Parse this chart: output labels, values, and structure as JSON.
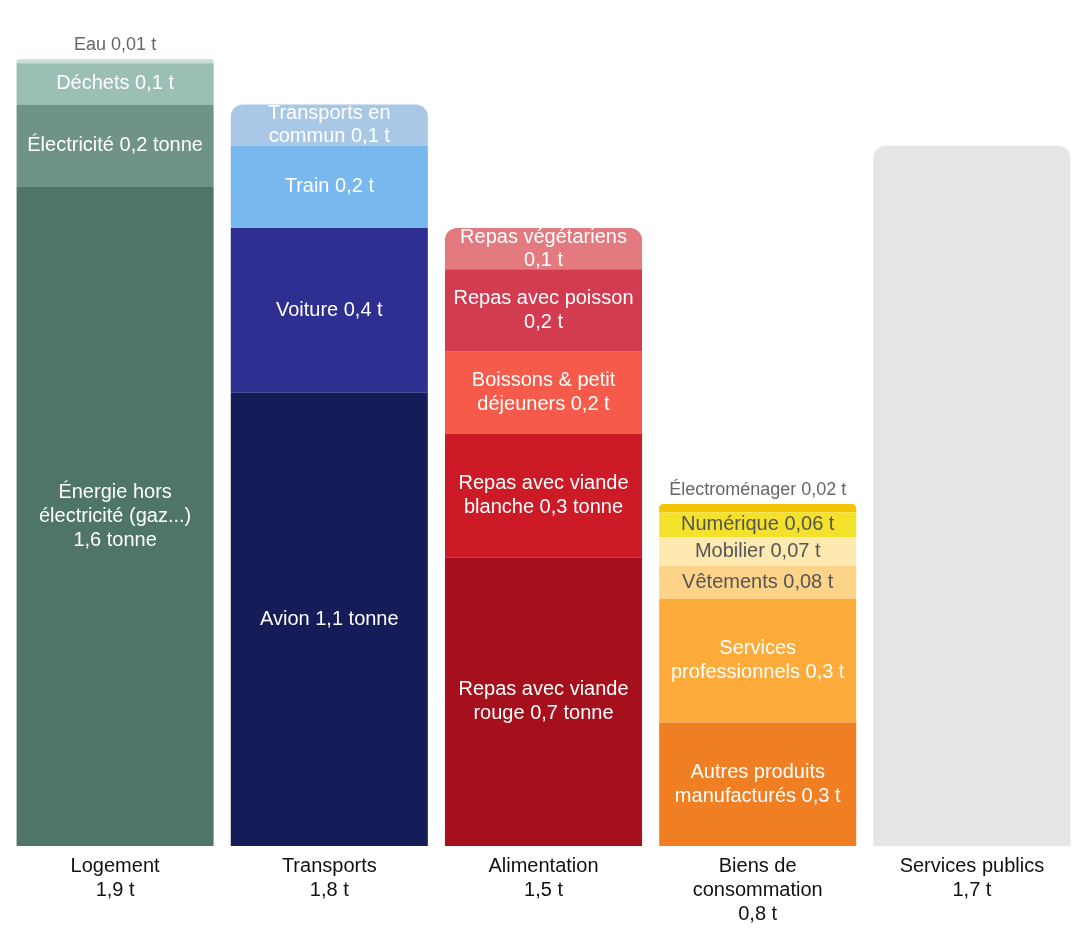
{
  "chart_data": {
    "type": "bar",
    "stacked": true,
    "grid": false,
    "legend": false,
    "categories": [
      "Logement",
      "Transports",
      "Alimentation",
      "Biens de consommation",
      "Services publics"
    ],
    "totals": [
      "1,9 t",
      "1,8 t",
      "1,5 t",
      "0,8 t",
      "1,7 t"
    ],
    "series": [
      {
        "values": [
          1.6,
          1.1,
          0.7,
          0.3,
          1.7
        ],
        "colors": [
          "#4e7566",
          "#151c57",
          "#a60f1c",
          "#f07e22",
          "#e5e5e5"
        ],
        "value_labels": [
          "Énergie hors électricité (gaz...) 1,6 tonne",
          "Avion 1,1 tonne",
          "Repas avec viande rouge 0,7 tonne",
          "Autres produits manufacturés 0,3 t",
          null
        ]
      },
      {
        "values": [
          0.2,
          0.4,
          0.3,
          0.3,
          null
        ],
        "colors": [
          "#6f9486",
          "#2e2f91",
          "#cd1a27",
          "#fdab3b",
          "#e5e5e5"
        ],
        "value_labels": [
          "Électricité 0,2 tonne",
          "Voiture 0,4 t",
          "Repas avec viande blanche 0,3 tonne",
          "Services professionnels 0,3 t",
          null
        ]
      },
      {
        "values": [
          0.1,
          0.2,
          0.2,
          0.08,
          null
        ],
        "colors": [
          "#9bbfb4",
          "#78b8ef",
          "#f55a4a",
          "#fdd38a",
          "#e5e5e5"
        ],
        "value_labels": [
          "Déchets 0,1 t",
          "Train 0,2 t",
          "Boissons & petit déjeuners 0,2 t",
          "Vêtements 0,08 t",
          null
        ]
      },
      {
        "values": [
          0.01,
          0.1,
          0.2,
          0.07,
          null
        ],
        "colors": [
          "#c8ddd6",
          "#a9c8e6",
          "#d33c50",
          "#feeab0",
          "#e5e5e5"
        ],
        "value_labels": [
          "Eau 0,01 t",
          "Transports en commun 0,1 t",
          "Repas avec poisson 0,2 t",
          "Mobilier 0,07 t",
          null
        ]
      },
      {
        "values": [
          null,
          null,
          0.1,
          0.06,
          null
        ],
        "colors": [
          "#e5e5e5",
          "#e5e5e5",
          "#e37a80",
          "#f3e12c",
          "#e5e5e5"
        ],
        "value_labels": [
          null,
          null,
          "Repas végétariens 0,1 t",
          "Numérique 0,06 t",
          null
        ]
      },
      {
        "values": [
          null,
          null,
          null,
          0.02,
          null
        ],
        "colors": [
          "#e5e5e5",
          "#e5e5e5",
          "#e5e5e5",
          "#f5c400",
          "#e5e5e5"
        ],
        "value_labels": [
          null,
          null,
          null,
          "Électroménager 0,02 t",
          null
        ]
      }
    ]
  }
}
